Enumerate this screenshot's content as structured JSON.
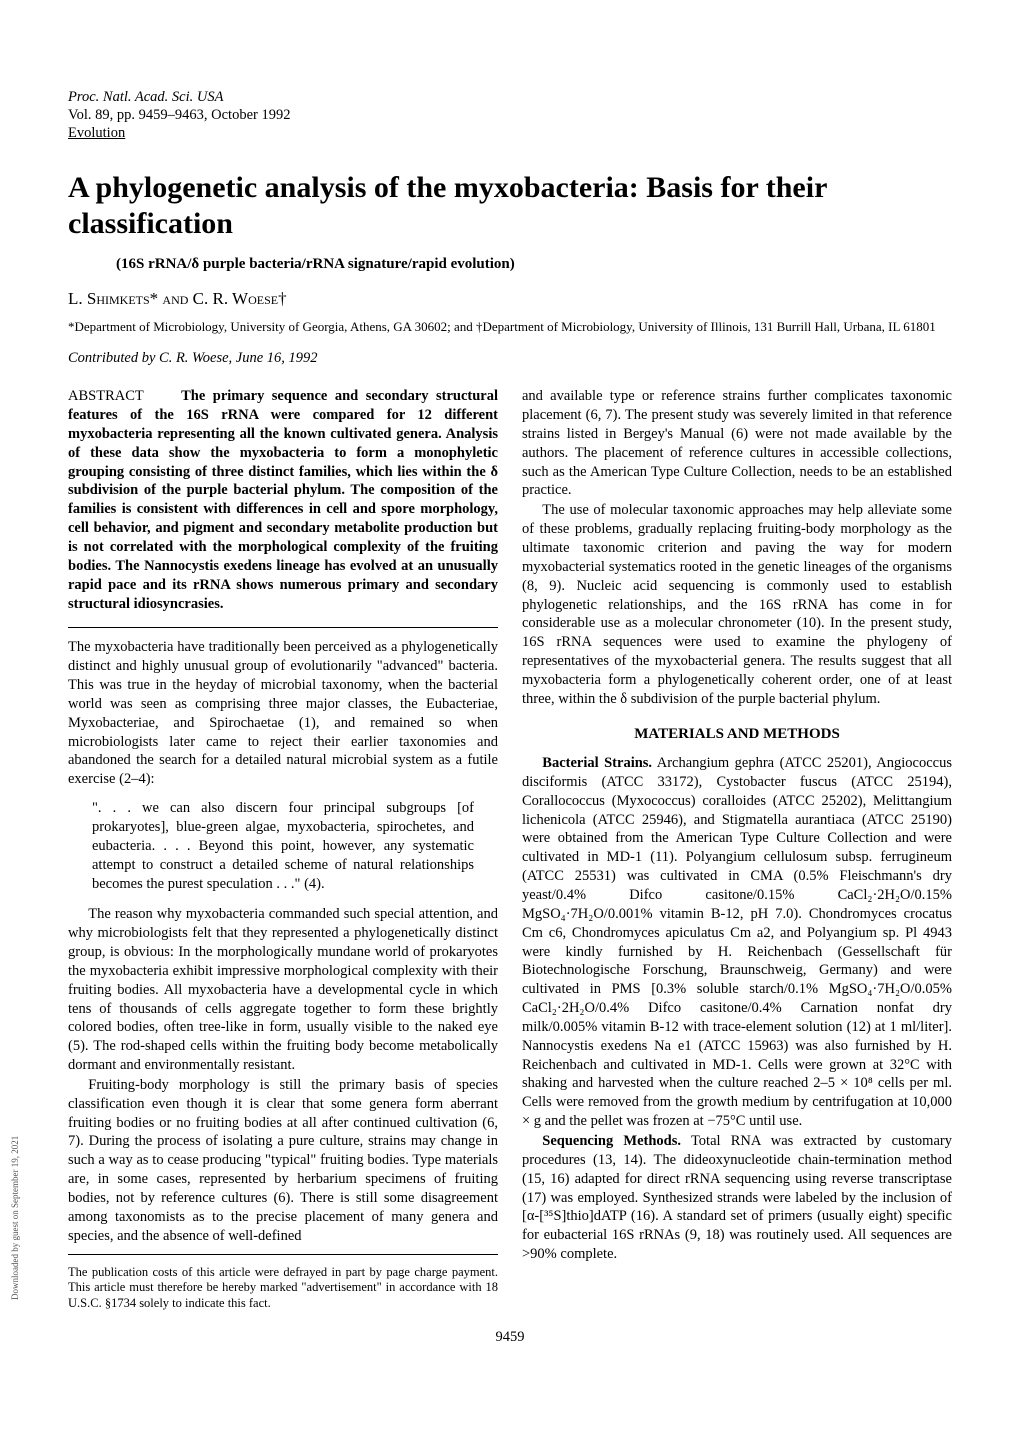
{
  "journal": {
    "line1": "Proc. Natl. Acad. Sci. USA",
    "line2": "Vol. 89, pp. 9459–9463, October 1992",
    "line3": "Evolution"
  },
  "title": "A phylogenetic analysis of the myxobacteria: Basis for their classification",
  "subtitle": "(16S rRNA/δ purple bacteria/rRNA signature/rapid evolution)",
  "authors": "L. Shimkets* and C. R. Woese†",
  "affiliations": "*Department of Microbiology, University of Georgia, Athens, GA 30602; and †Department of Microbiology, University of Illinois, 131 Burrill Hall, Urbana, IL 61801",
  "contributed": "Contributed by C. R. Woese, June 16, 1992",
  "abstract": {
    "label": "ABSTRACT",
    "text": "The primary sequence and secondary structural features of the 16S rRNA were compared for 12 different myxobacteria representing all the known cultivated genera. Analysis of these data show the myxobacteria to form a monophyletic grouping consisting of three distinct families, which lies within the δ subdivision of the purple bacterial phylum. The composition of the families is consistent with differences in cell and spore morphology, cell behavior, and pigment and secondary metabolite production but is not correlated with the morphological complexity of the fruiting bodies. The Nannocystis exedens lineage has evolved at an unusually rapid pace and its rRNA shows numerous primary and secondary structural idiosyncrasies."
  },
  "intro_paragraphs": [
    "The myxobacteria have traditionally been perceived as a phylogenetically distinct and highly unusual group of evolutionarily \"advanced\" bacteria. This was true in the heyday of microbial taxonomy, when the bacterial world was seen as comprising three major classes, the Eubacteriae, Myxobacteriae, and Spirochaetae (1), and remained so when microbiologists later came to reject their earlier taxonomies and abandoned the search for a detailed natural microbial system as a futile exercise (2–4):"
  ],
  "quote": "\". . . we can also discern four principal subgroups [of prokaryotes], blue-green algae, myxobacteria, spirochetes, and eubacteria. . . . Beyond this point, however, any systematic attempt to construct a detailed scheme of natural relationships becomes the purest speculation . . .\" (4).",
  "intro_paragraphs_2": [
    "The reason why myxobacteria commanded such special attention, and why microbiologists felt that they represented a phylogenetically distinct group, is obvious: In the morphologically mundane world of prokaryotes the myxobacteria exhibit impressive morphological complexity with their fruiting bodies. All myxobacteria have a developmental cycle in which tens of thousands of cells aggregate together to form these brightly colored bodies, often tree-like in form, usually visible to the naked eye (5). The rod-shaped cells within the fruiting body become metabolically dormant and environmentally resistant.",
    "Fruiting-body morphology is still the primary basis of species classification even though it is clear that some genera form aberrant fruiting bodies or no fruiting bodies at all after continued cultivation (6, 7). During the process of isolating a pure culture, strains may change in such a way as to cease producing \"typical\" fruiting bodies. Type materials are, in some cases, represented by herbarium specimens of fruiting bodies, not by reference cultures (6). There is still some disagreement among taxonomists as to the precise placement of many genera and species, and the absence of well-defined"
  ],
  "publication_footnote": "The publication costs of this article were defrayed in part by page charge payment. This article must therefore be hereby marked \"advertisement\" in accordance with 18 U.S.C. §1734 solely to indicate this fact.",
  "col2_paragraphs": [
    "and available type or reference strains further complicates taxonomic placement (6, 7). The present study was severely limited in that reference strains listed in Bergey's Manual (6) were not made available by the authors. The placement of reference cultures in accessible collections, such as the American Type Culture Collection, needs to be an established practice.",
    "The use of molecular taxonomic approaches may help alleviate some of these problems, gradually replacing fruiting-body morphology as the ultimate taxonomic criterion and paving the way for modern myxobacterial systematics rooted in the genetic lineages of the organisms (8, 9). Nucleic acid sequencing is commonly used to establish phylogenetic relationships, and the 16S rRNA has come in for considerable use as a molecular chronometer (10). In the present study, 16S rRNA sequences were used to examine the phylogeny of representatives of the myxobacterial genera. The results suggest that all myxobacteria form a phylogenetically coherent order, one of at least three, within the δ subdivision of the purple bacterial phylum."
  ],
  "section_heading": "MATERIALS AND METHODS",
  "methods": {
    "bacterial_strains_label": "Bacterial Strains.",
    "bacterial_strains_text": " Archangium gephra (ATCC 25201), Angiococcus disciformis (ATCC 33172), Cystobacter fuscus (ATCC 25194), Corallococcus (Myxococcus) coralloides (ATCC 25202), Melittangium lichenicola (ATCC 25946), and Stigmatella aurantiaca (ATCC 25190) were obtained from the American Type Culture Collection and were cultivated in MD-1 (11). Polyangium cellulosum subsp. ferrugineum (ATCC 25531) was cultivated in CMA (0.5% Fleischmann's dry yeast/0.4% Difco casitone/0.15% CaCl₂·2H₂O/0.15% MgSO₄·7H₂O/0.001% vitamin B-12, pH 7.0). Chondromyces crocatus Cm c6, Chondromyces apiculatus Cm a2, and Polyangium sp. Pl 4943 were kindly furnished by H. Reichenbach (Gessellschaft für Biotechnologische Forschung, Braunschweig, Germany) and were cultivated in PMS [0.3% soluble starch/0.1% MgSO₄·7H₂O/0.05% CaCl₂·2H₂O/0.4% Difco casitone/0.4% Carnation nonfat dry milk/0.005% vitamin B-12 with trace-element solution (12) at 1 ml/liter]. Nannocystis exedens Na e1 (ATCC 15963) was also furnished by H. Reichenbach and cultivated in MD-1. Cells were grown at 32°C with shaking and harvested when the culture reached 2–5 × 10⁸ cells per ml. Cells were removed from the growth medium by centrifugation at 10,000 × g and the pellet was frozen at −75°C until use.",
    "sequencing_label": "Sequencing Methods.",
    "sequencing_text": " Total RNA was extracted by customary procedures (13, 14). The dideoxynucleotide chain-termination method (15, 16) adapted for direct rRNA sequencing using reverse transcriptase (17) was employed. Synthesized strands were labeled by the inclusion of [α-[³⁵S]thio]dATP (16). A standard set of primers (usually eight) specific for eubacterial 16S rRNAs (9, 18) was routinely used. All sequences are >90% complete."
  },
  "page_number": "9459",
  "side_note": "Downloaded by guest on September 19, 2021"
}
